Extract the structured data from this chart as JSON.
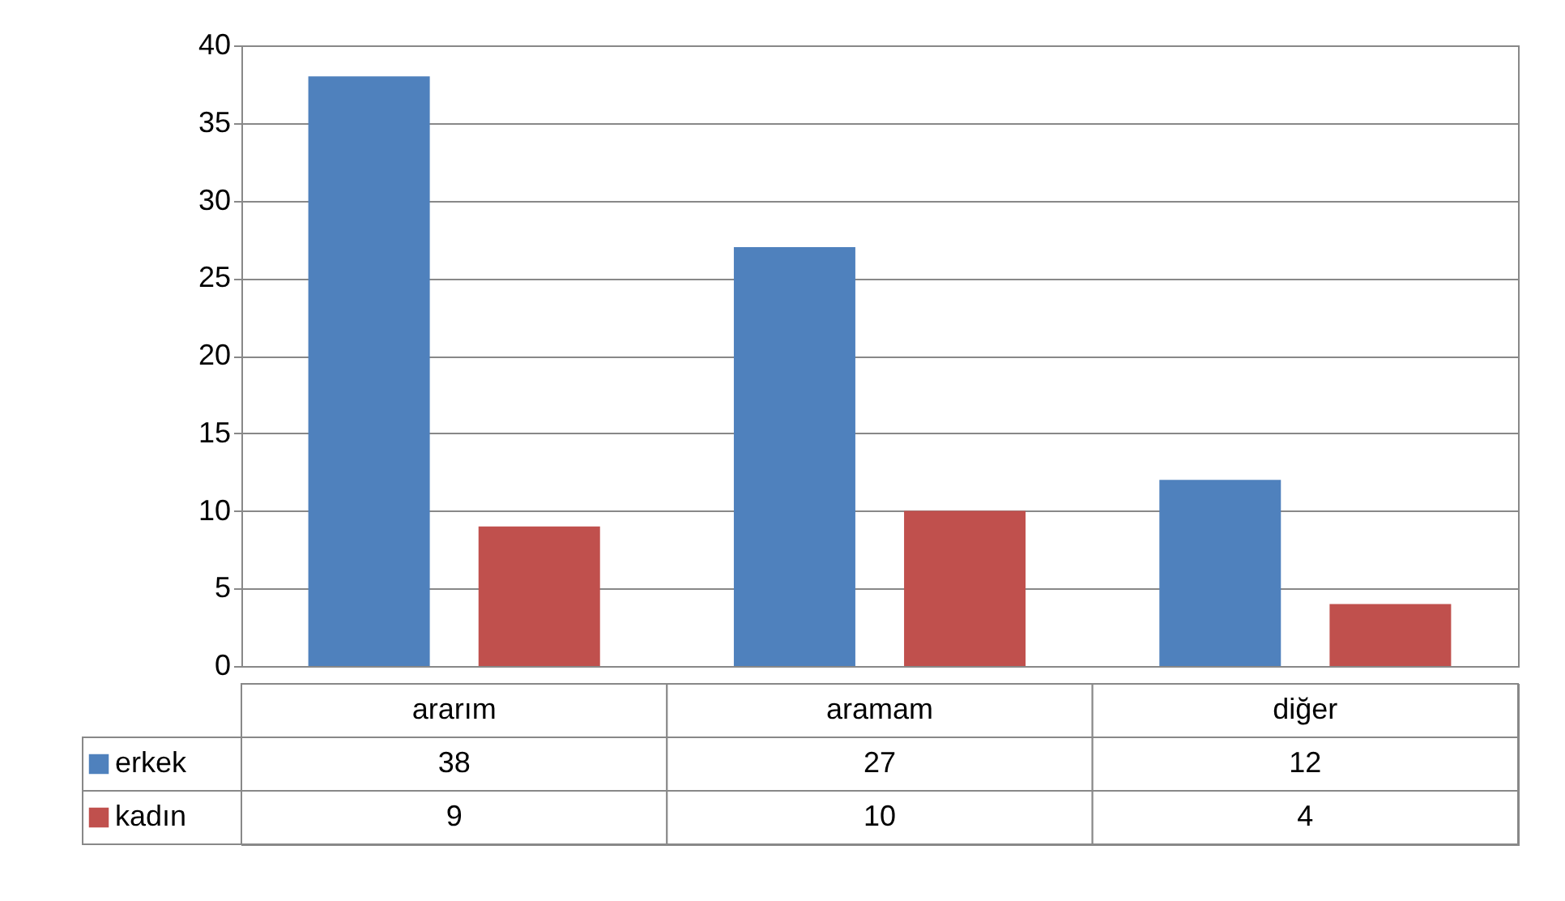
{
  "chart_data": {
    "type": "bar",
    "categories": [
      "ararım",
      "aramam",
      "diğer"
    ],
    "series": [
      {
        "name": "erkek",
        "color": "#4f81bd",
        "values": [
          38,
          27,
          12
        ]
      },
      {
        "name": "kadın",
        "color": "#c0504d",
        "values": [
          9,
          10,
          4
        ]
      }
    ],
    "ylim": [
      0,
      40
    ],
    "yticks": [
      0,
      5,
      10,
      15,
      20,
      25,
      30,
      35,
      40
    ],
    "grid": "y",
    "legend": "bottom",
    "data_labels": true
  }
}
